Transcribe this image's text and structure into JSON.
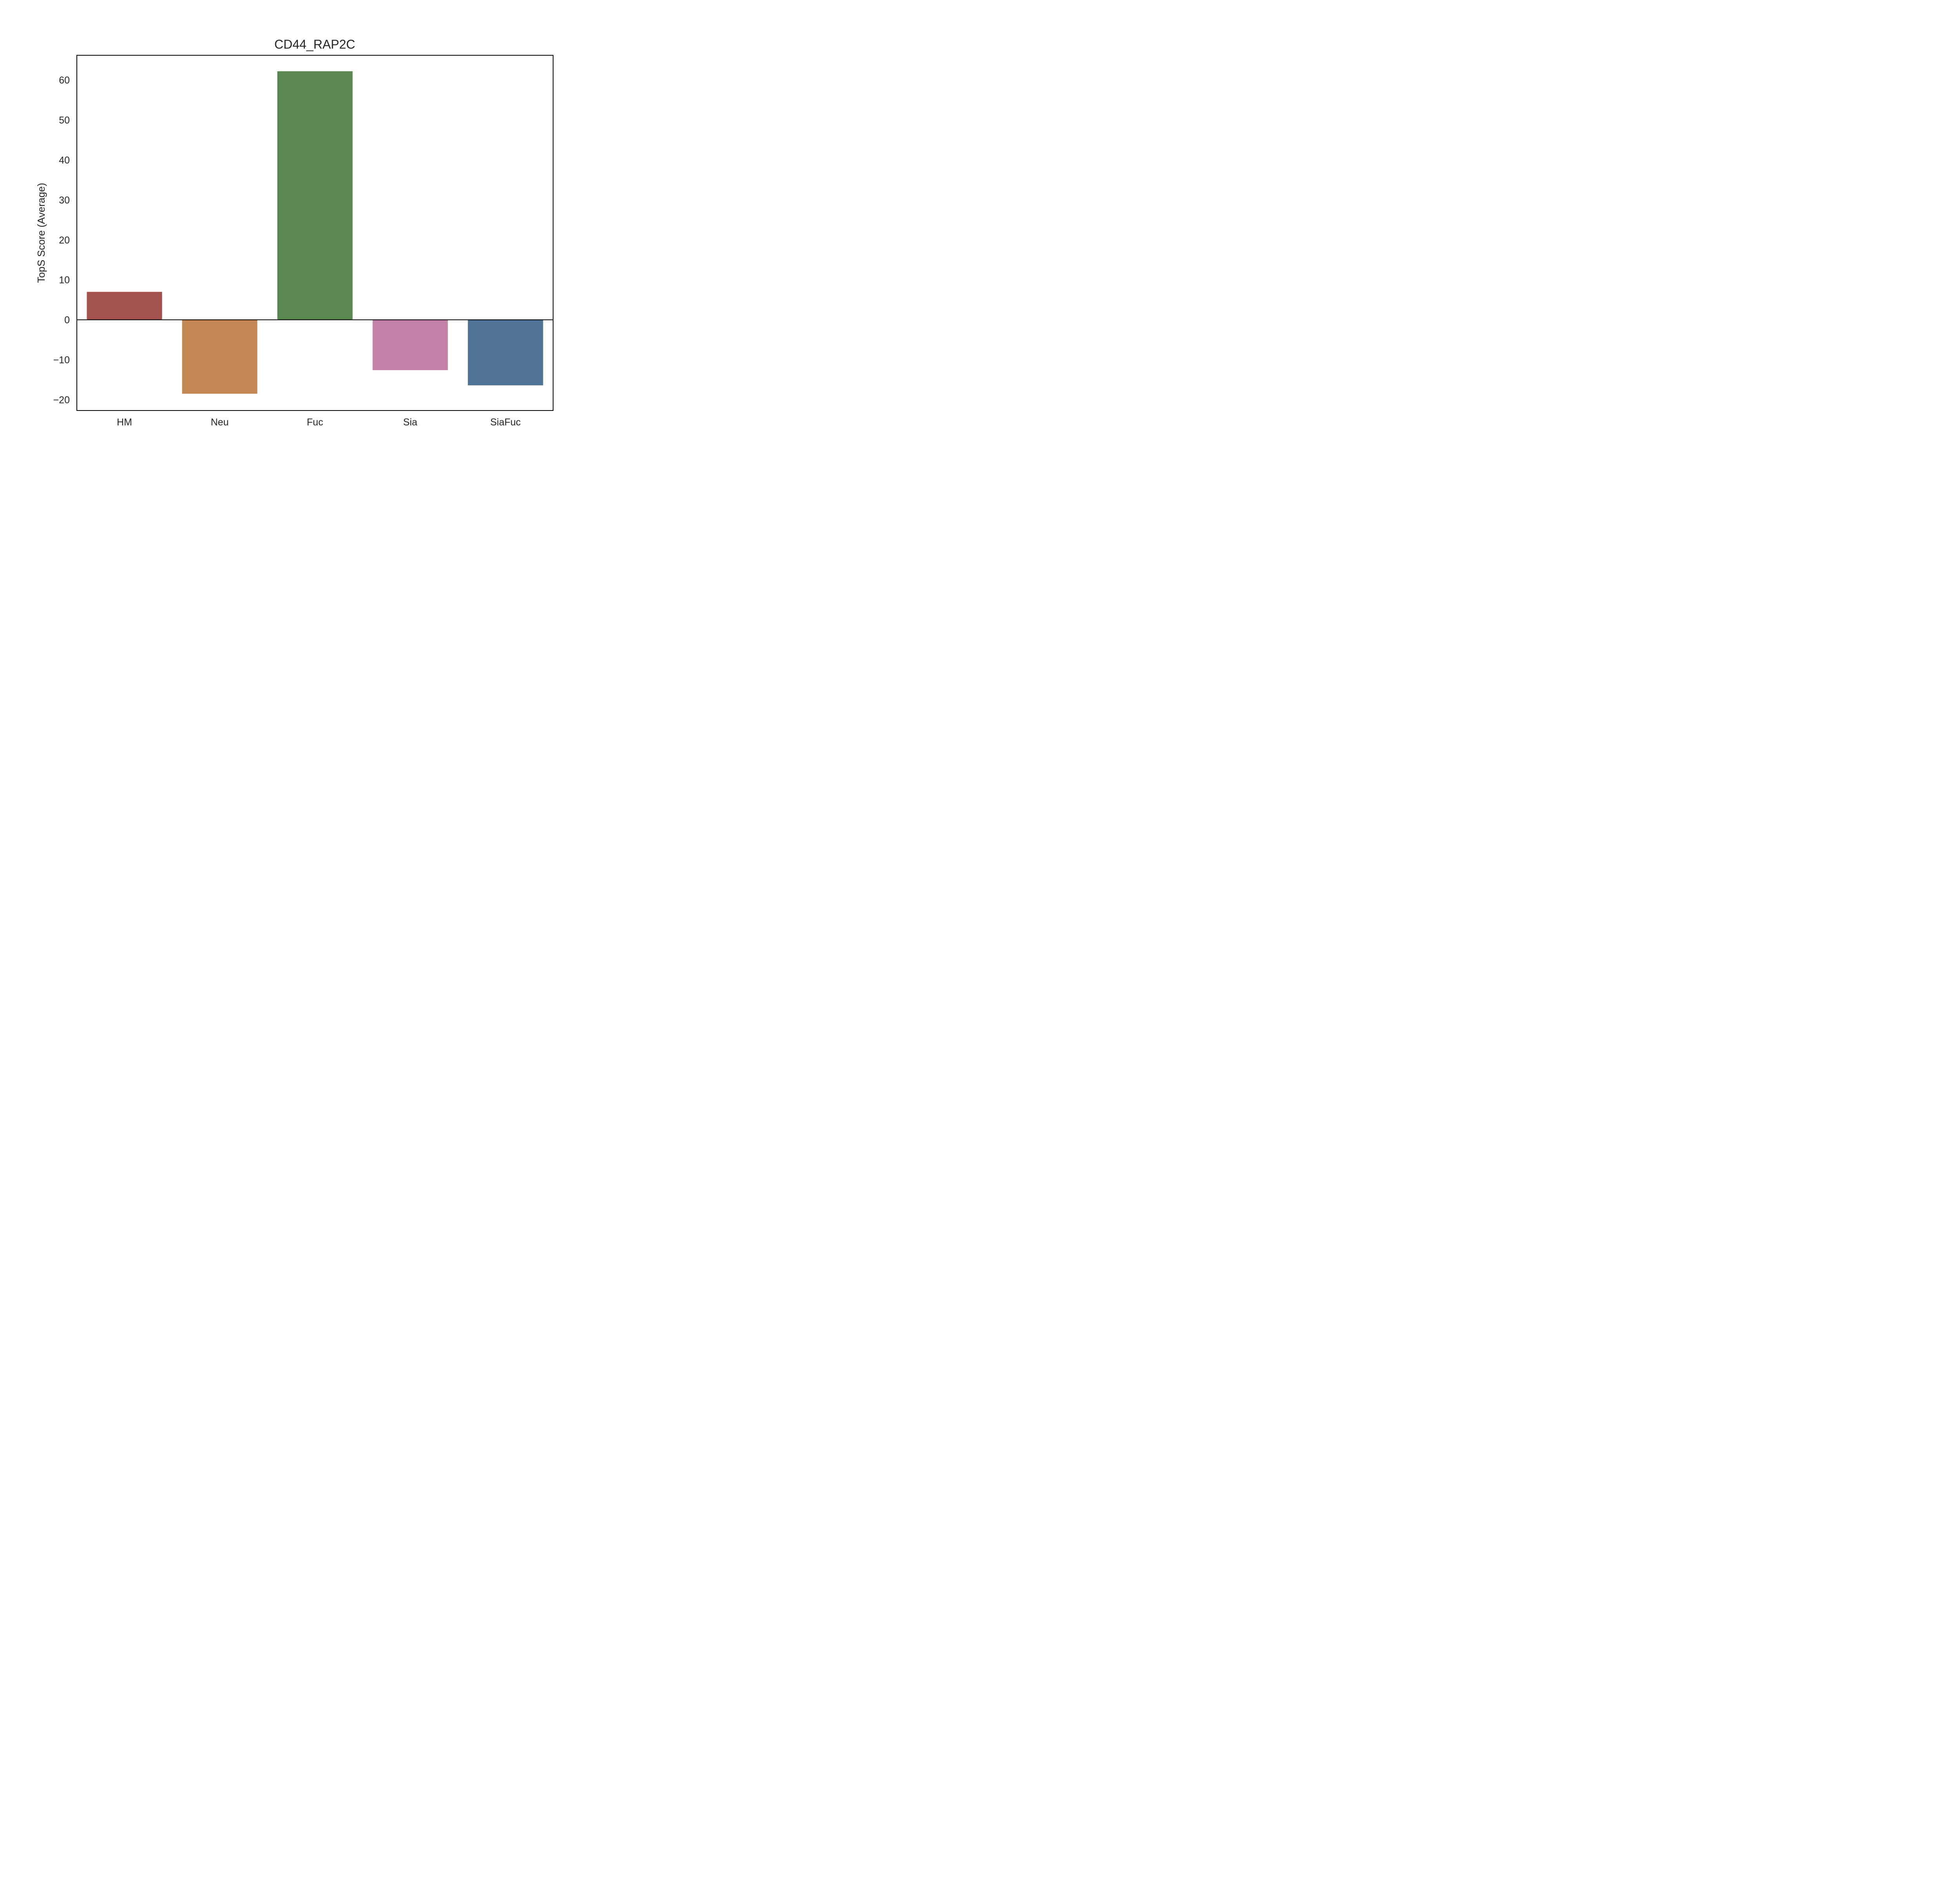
{
  "chart_data": {
    "type": "bar",
    "title": "CD44_RAP2C",
    "xlabel": "",
    "ylabel": "TopS Score (Average)",
    "categories": [
      "HM",
      "Neu",
      "Fuc",
      "Sia",
      "SiaFuc"
    ],
    "values": [
      7.0,
      -18.5,
      62.2,
      -12.6,
      -16.4
    ],
    "colors": [
      "#a3524f",
      "#c28752",
      "#5a874f",
      "#c282a6",
      "#4f7394"
    ],
    "ylim": [
      -22.7,
      66.2
    ],
    "yticks": [
      -20,
      -10,
      0,
      10,
      20,
      30,
      40,
      50,
      60
    ],
    "ytick_labels": [
      "−20",
      "−10",
      "0",
      "10",
      "20",
      "30",
      "40",
      "50",
      "60"
    ],
    "grid": false,
    "zero_line": true,
    "legend": "none"
  }
}
